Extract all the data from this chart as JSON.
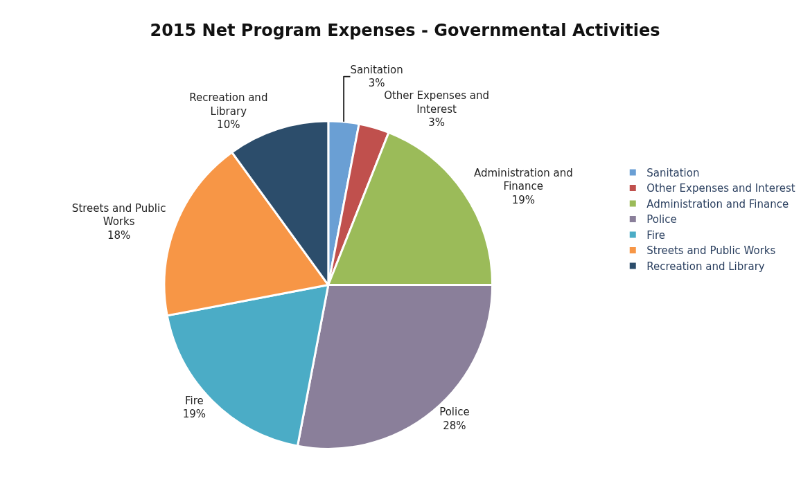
{
  "chart_data": {
    "type": "pie",
    "title": "2015 Net Program Expenses - Governmental Activities",
    "categories": [
      "Sanitation",
      "Other Expenses and Interest",
      "Administration and Finance",
      "Police",
      "Fire",
      "Streets and Public Works",
      "Recreation and Library"
    ],
    "values": [
      3,
      3,
      19,
      28,
      19,
      18,
      10
    ],
    "value_labels": [
      "3%",
      "3%",
      "19%",
      "28%",
      "19%",
      "18%",
      "10%"
    ],
    "colors": [
      "#6a9fd4",
      "#c0504d",
      "#9bbb59",
      "#8a7f9a",
      "#4bacc6",
      "#f79646",
      "#2c4d6b"
    ],
    "legend": "right"
  }
}
